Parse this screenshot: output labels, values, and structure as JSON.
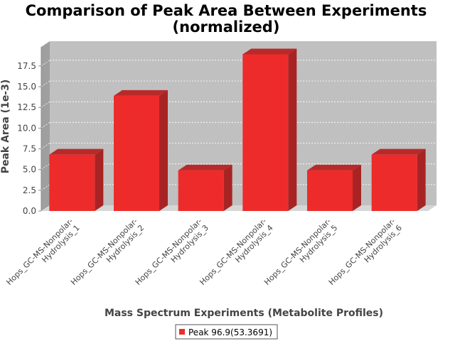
{
  "chart_data": {
    "type": "bar",
    "title_lines": [
      "Comparison of Peak Area Between Experiments",
      "(normalized)"
    ],
    "xlabel": "Mass Spectrum Experiments (Metabolite Profiles)",
    "ylabel": "Peak Area (1e-3)",
    "categories": [
      [
        "Hops_GC-MS-Nonpolar-",
        "Hydrolysis_1"
      ],
      [
        "Hops_GC-MS-Nonpolar-",
        "Hydrolysis_2"
      ],
      [
        "Hops_GC-MS-Nonpolar-",
        "Hydrolysis_3"
      ],
      [
        "Hops_GC-MS-Nonpolar-",
        "Hydrolysis_4"
      ],
      [
        "Hops_GC-MS-Nonpolar-",
        "Hydrolysis_5"
      ],
      [
        "Hops_GC-MS-Nonpolar-",
        "Hydrolysis_6"
      ]
    ],
    "series": [
      {
        "name": "Peak 96.9(53.3691)",
        "values": [
          6.8,
          13.9,
          4.9,
          18.9,
          4.9,
          6.8
        ]
      }
    ],
    "ylim": [
      0,
      19.8
    ],
    "yticks": [
      "0.0",
      "2.5",
      "5.0",
      "7.5",
      "10.0",
      "12.5",
      "15.0",
      "17.5"
    ],
    "grid": true,
    "legend_position": "bottom",
    "colors": {
      "bar_front": "#ee2b2b",
      "bar_top": "#b82a2a",
      "bar_side": "#a82424",
      "plot_back": "#c0c0c0",
      "plot_side": "#9f9f9f",
      "plot_floor": "#d6d6d6"
    }
  }
}
